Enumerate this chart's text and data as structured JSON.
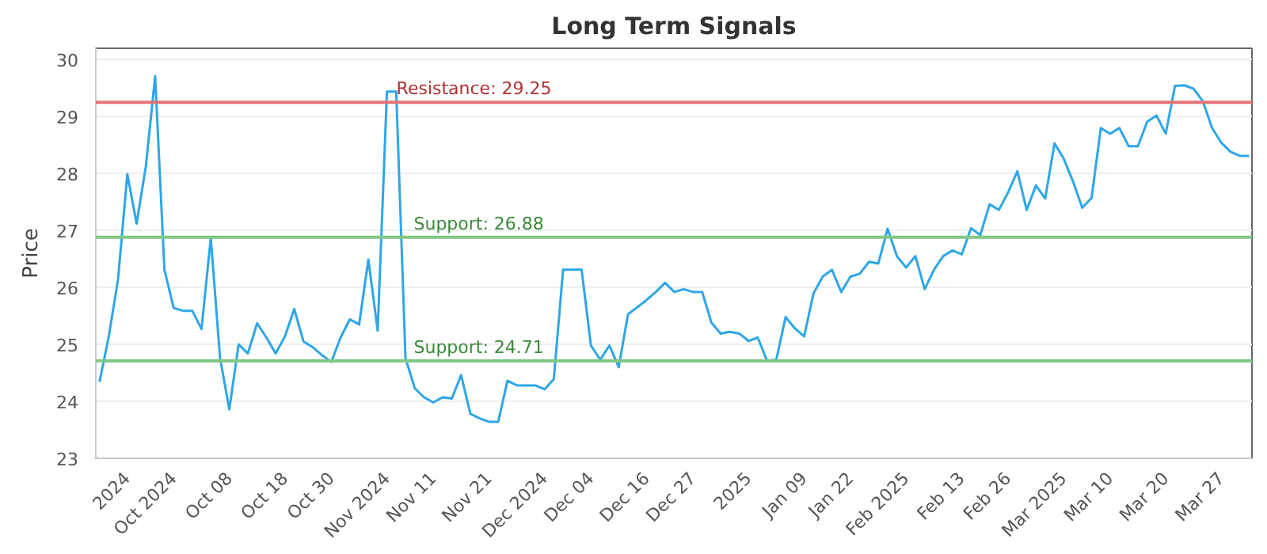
{
  "chart_data": {
    "type": "line",
    "title": "Long Term Signals",
    "ylabel": "Price",
    "categories": [
      null,
      null,
      null,
      "2024",
      null,
      null,
      null,
      null,
      "Oct 2024",
      null,
      null,
      null,
      null,
      null,
      "Oct 08",
      null,
      null,
      null,
      null,
      null,
      "Oct 18",
      null,
      null,
      null,
      null,
      "Oct 30",
      null,
      null,
      null,
      null,
      null,
      "Nov 2024",
      null,
      null,
      null,
      null,
      "Nov 11",
      null,
      null,
      null,
      null,
      null,
      "Nov 21",
      null,
      null,
      null,
      null,
      null,
      "Dec 2024",
      null,
      null,
      null,
      null,
      "Dec 04",
      null,
      null,
      null,
      null,
      null,
      "Dec 16",
      null,
      null,
      null,
      null,
      "Dec 27",
      null,
      null,
      null,
      null,
      null,
      "2025",
      null,
      null,
      null,
      null,
      null,
      "Jan 09",
      null,
      null,
      null,
      null,
      "Jan 22",
      null,
      null,
      null,
      null,
      null,
      "Feb 2025",
      null,
      null,
      null,
      null,
      null,
      "Feb 13",
      null,
      null,
      null,
      null,
      "Feb 26",
      null,
      null,
      null,
      null,
      null,
      "Mar 2025",
      null,
      null,
      null,
      null,
      "Mar 10",
      null,
      null,
      null,
      null,
      null,
      "Mar 20",
      null,
      null,
      null,
      null,
      null,
      "Mar 27",
      null,
      null,
      null
    ],
    "series": [
      {
        "color": "#2ea6e8",
        "values": [
          24.34,
          25.14,
          26.15,
          27.99,
          27.12,
          28.13,
          29.71,
          26.31,
          25.64,
          25.59,
          25.59,
          25.27,
          26.87,
          24.76,
          23.86,
          25.0,
          24.84,
          25.37,
          25.12,
          24.84,
          25.14,
          25.62,
          25.05,
          24.95,
          24.81,
          24.69,
          25.12,
          25.44,
          25.35,
          26.49,
          25.24,
          29.44,
          29.44,
          24.76,
          24.23,
          24.07,
          23.98,
          24.07,
          24.05,
          24.46,
          23.78,
          23.7,
          23.64,
          23.64,
          24.36,
          24.28,
          24.28,
          24.28,
          24.21,
          24.39,
          26.31,
          26.31,
          26.31,
          24.98,
          24.73,
          24.98,
          24.6,
          25.53,
          25.65,
          25.78,
          25.92,
          26.08,
          25.92,
          25.97,
          25.92,
          25.92,
          25.38,
          25.19,
          25.22,
          25.19,
          25.06,
          25.12,
          24.71,
          24.73,
          25.48,
          25.28,
          25.14,
          25.89,
          26.19,
          26.31,
          25.92,
          26.19,
          26.24,
          26.45,
          26.42,
          27.03,
          26.55,
          26.35,
          26.55,
          25.97,
          26.31,
          26.55,
          26.65,
          26.58,
          27.04,
          26.92,
          27.46,
          27.36,
          27.67,
          28.04,
          27.36,
          27.79,
          27.56,
          28.53,
          28.26,
          27.86,
          27.4,
          27.57,
          28.8,
          28.7,
          28.8,
          28.48,
          28.48,
          28.91,
          29.02,
          28.7,
          29.54,
          29.55,
          29.49,
          29.27,
          28.8,
          28.54,
          28.38,
          28.31,
          28.31
        ]
      }
    ],
    "ylim": [
      23,
      30.2
    ],
    "yticks": [
      23,
      24,
      25,
      26,
      27,
      28,
      29,
      30
    ],
    "ref_lines": [
      {
        "axis": "y",
        "value": 29.25,
        "label": "Resistance: 29.25",
        "color": "#e57373"
      },
      {
        "axis": "y",
        "value": 26.88,
        "label": "Support: 26.88",
        "color": "#81c784"
      },
      {
        "axis": "y",
        "value": 24.71,
        "label": "Support: 24.71",
        "color": "#81c784"
      }
    ],
    "grid": "y",
    "marker": "none",
    "line_style": "solid"
  }
}
